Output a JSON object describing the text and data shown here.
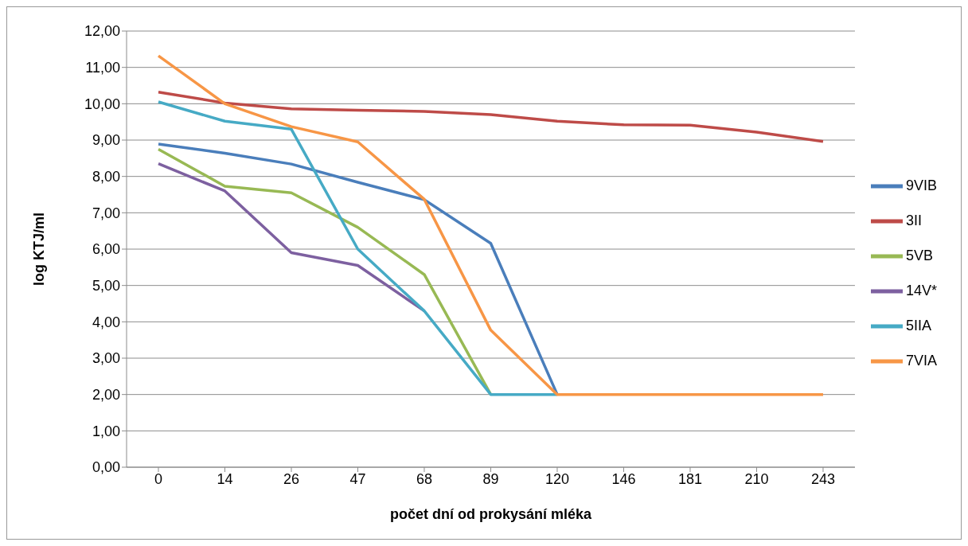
{
  "chart_data": {
    "type": "line",
    "xlabel": "počet dní od prokysání mléka",
    "ylabel": "log KTJ/ml",
    "categories": [
      "0",
      "14",
      "26",
      "47",
      "68",
      "89",
      "120",
      "146",
      "181",
      "210",
      "243"
    ],
    "series": [
      {
        "name": "9VIB",
        "color": "#4a7ebb",
        "values": [
          8.89,
          8.64,
          8.34,
          7.84,
          7.36,
          6.16,
          2.0,
          null,
          null,
          null,
          null
        ]
      },
      {
        "name": "3II",
        "color": "#be4b48",
        "values": [
          10.32,
          10.02,
          9.86,
          9.82,
          9.79,
          9.7,
          9.52,
          9.42,
          9.41,
          9.22,
          8.96
        ]
      },
      {
        "name": "5VB",
        "color": "#98b954",
        "values": [
          8.75,
          7.73,
          7.55,
          6.6,
          5.3,
          2.0,
          null,
          null,
          null,
          null,
          null
        ]
      },
      {
        "name": "14V*",
        "color": "#7d60a0",
        "values": [
          8.35,
          7.6,
          5.9,
          5.55,
          4.3,
          null,
          null,
          null,
          null,
          null,
          null
        ]
      },
      {
        "name": "5IIA",
        "color": "#46aac5",
        "values": [
          10.05,
          9.52,
          9.3,
          6.0,
          4.3,
          2.0,
          2.0,
          null,
          null,
          null,
          null
        ]
      },
      {
        "name": "7VIA",
        "color": "#f79646",
        "values": [
          11.32,
          10.0,
          9.37,
          8.95,
          7.37,
          3.77,
          2.0,
          2.0,
          2.0,
          2.0,
          2.0
        ]
      }
    ],
    "ylim": [
      0,
      12
    ],
    "yticks": [
      {
        "value": 0,
        "label": "0,00"
      },
      {
        "value": 1,
        "label": "1,00"
      },
      {
        "value": 2,
        "label": "2,00"
      },
      {
        "value": 3,
        "label": "3,00"
      },
      {
        "value": 4,
        "label": "4,00"
      },
      {
        "value": 5,
        "label": "5,00"
      },
      {
        "value": 6,
        "label": "6,00"
      },
      {
        "value": 7,
        "label": "7,00"
      },
      {
        "value": 8,
        "label": "8,00"
      },
      {
        "value": 9,
        "label": "9,00"
      },
      {
        "value": 10,
        "label": "10,00"
      },
      {
        "value": 11,
        "label": "11,00"
      },
      {
        "value": 12,
        "label": "12,00"
      }
    ],
    "grid": "y",
    "legend": "right",
    "marker": "none",
    "line_style": "solid"
  }
}
